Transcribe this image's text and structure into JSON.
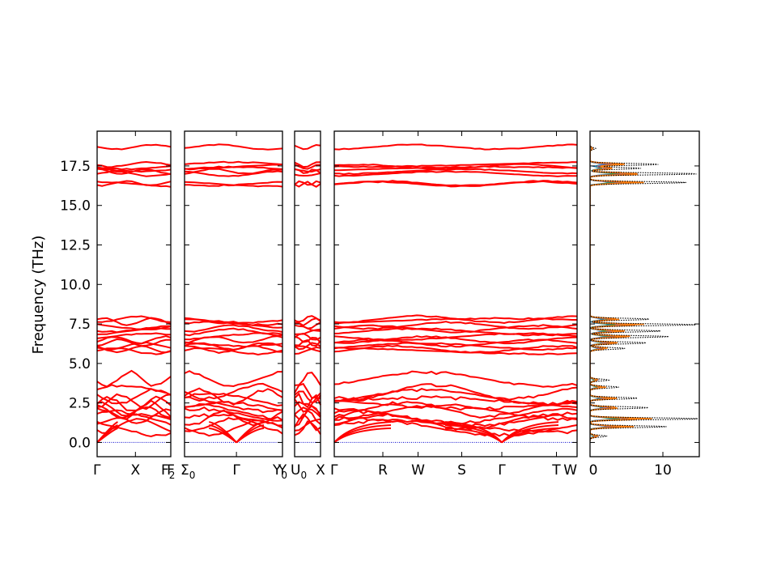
{
  "chart_data": {
    "type": "line",
    "ylabel": "Frequency (THz)",
    "ylim": [
      -0.9,
      19.7
    ],
    "yticks": [
      0.0,
      2.5,
      5.0,
      7.5,
      10.0,
      12.5,
      15.0,
      17.5
    ],
    "ytick_labels": [
      "0.0",
      "2.5",
      "5.0",
      "7.5",
      "10.0",
      "12.5",
      "15.0",
      "17.5"
    ],
    "band_color": "#ff0000",
    "zero_line_color": "#0000cc",
    "band_levels": {
      "optical_high": [
        18.7,
        17.6,
        17.45,
        17.3,
        17.15,
        17.0,
        16.4,
        16.35
      ],
      "optical_mid": [
        7.8,
        7.65,
        7.4,
        7.2,
        7.0,
        6.7,
        6.5,
        6.3,
        6.1,
        5.9,
        5.8
      ],
      "acoustic_low": [
        4.0,
        3.2,
        2.9,
        2.6,
        2.4,
        2.1,
        1.9,
        1.7,
        1.5,
        1.3,
        1.1,
        0.9
      ]
    },
    "panels": [
      {
        "labels": [
          "Γ",
          "X",
          "F"
        ],
        "positions": [
          0.0,
          0.52,
          1.0
        ]
      },
      {
        "labels": [
          "Σ",
          "Γ",
          "Y"
        ],
        "subscripts": [
          "0",
          "",
          ""
        ],
        "positions": [
          0.0,
          0.53,
          1.0
        ]
      },
      {
        "labels": [
          "U",
          "X"
        ],
        "subscripts": [
          "0",
          ""
        ],
        "positions": [
          0.0,
          1.0
        ]
      },
      {
        "labels": [
          "Γ",
          "R",
          "W",
          "S",
          "Γ",
          "T",
          "W"
        ],
        "positions": [
          0.0,
          0.2,
          0.345,
          0.525,
          0.69,
          0.915,
          1.0
        ]
      }
    ],
    "boundary_labels": [
      {
        "text": "F",
        "sub": "2"
      },
      {
        "text": "Y",
        "sub": "0"
      }
    ],
    "dos": {
      "xlim": [
        0,
        15
      ],
      "xticks": [
        0,
        10
      ],
      "xtick_labels": [
        "0",
        "10"
      ],
      "peaks_total": [
        {
          "f": 18.6,
          "v": 0.8
        },
        {
          "f": 17.6,
          "v": 9.5
        },
        {
          "f": 17.35,
          "v": 7.0
        },
        {
          "f": 17.0,
          "v": 14.8
        },
        {
          "f": 16.45,
          "v": 13.2
        },
        {
          "f": 7.8,
          "v": 8.2
        },
        {
          "f": 7.45,
          "v": 14.5
        },
        {
          "f": 7.05,
          "v": 9.8
        },
        {
          "f": 6.7,
          "v": 10.8
        },
        {
          "f": 6.3,
          "v": 7.8
        },
        {
          "f": 5.95,
          "v": 4.8
        },
        {
          "f": 3.95,
          "v": 2.6
        },
        {
          "f": 3.5,
          "v": 4.0
        },
        {
          "f": 2.8,
          "v": 6.5
        },
        {
          "f": 2.2,
          "v": 8.0
        },
        {
          "f": 1.5,
          "v": 15.0
        },
        {
          "f": 1.0,
          "v": 10.5
        },
        {
          "f": 0.4,
          "v": 2.2
        }
      ],
      "partial_colors": [
        "#1f77b4",
        "#2ca02c",
        "#9467bd",
        "#8c564b",
        "#ff7f0e"
      ]
    }
  }
}
